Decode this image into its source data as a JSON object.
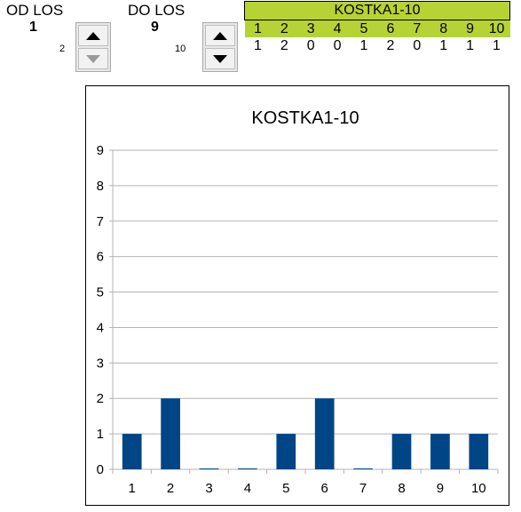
{
  "od_los": {
    "label": "OD LOS",
    "value": "1",
    "spinner_value": "2"
  },
  "do_los": {
    "label": "DO LOS",
    "value": "9",
    "spinner_value": "10"
  },
  "table": {
    "title": "KOSTKA1-10",
    "headers": [
      "1",
      "2",
      "3",
      "4",
      "5",
      "6",
      "7",
      "8",
      "9",
      "10"
    ],
    "values": [
      "1",
      "2",
      "0",
      "0",
      "1",
      "2",
      "0",
      "1",
      "1",
      "1"
    ]
  },
  "colors": {
    "header_green": "#b5d334",
    "bar_blue": "#004586"
  },
  "chart_data": {
    "type": "bar",
    "title": "KOSTKA1-10",
    "categories": [
      "1",
      "2",
      "3",
      "4",
      "5",
      "6",
      "7",
      "8",
      "9",
      "10"
    ],
    "values": [
      1,
      2,
      0,
      0,
      1,
      2,
      0,
      1,
      1,
      1
    ],
    "ylim": [
      0,
      9
    ],
    "yticks": [
      "0",
      "1",
      "2",
      "3",
      "4",
      "5",
      "6",
      "7",
      "8",
      "9"
    ],
    "grid": true,
    "xlabel": "",
    "ylabel": ""
  }
}
